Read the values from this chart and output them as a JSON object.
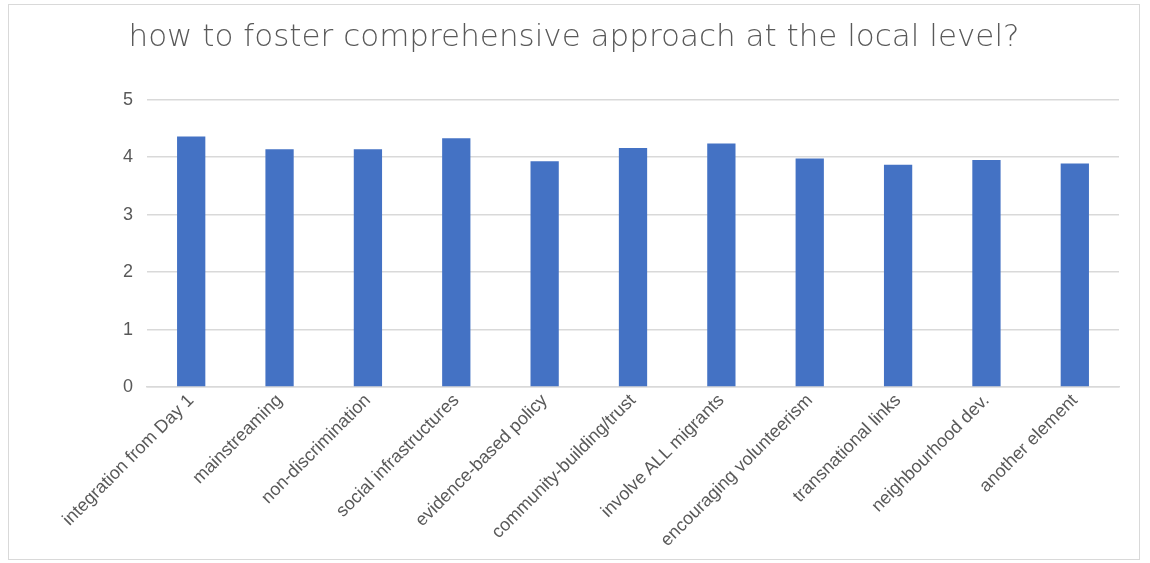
{
  "chart_data": {
    "type": "bar",
    "title": "how to foster comprehensive approach at the local level?",
    "categories": [
      "integration from Day 1",
      "mainstreaming",
      "non-discrimination",
      "social infrastructures",
      "evidence-based policy",
      "community-building/trust",
      "involve ALL migrants",
      "encouraging volunteerism",
      "transnational links",
      "neighbourhood dev.",
      "another element"
    ],
    "values": [
      4.36,
      4.14,
      4.14,
      4.33,
      3.93,
      4.16,
      4.24,
      3.98,
      3.87,
      3.95,
      3.89
    ],
    "color": "#4472c4",
    "ylim": [
      0,
      5
    ],
    "yticks": [
      0,
      1,
      2,
      3,
      4,
      5
    ],
    "grid": "y"
  }
}
